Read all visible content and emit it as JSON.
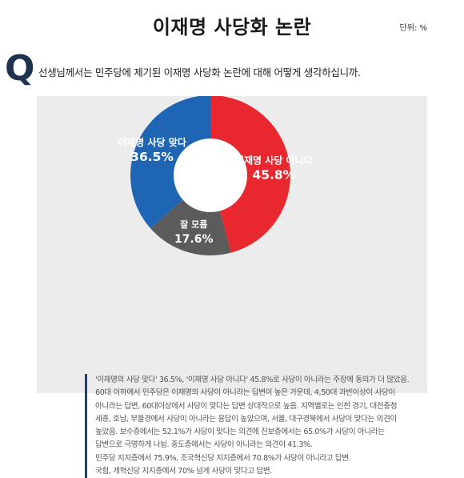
{
  "title": "이재명 사당화 논란",
  "unit": "단위: %",
  "q_mark": "Q",
  "question": "선생님께서는 민주당에 제기된 이재명 사당화 논란에 대해 어떻게 생각하십니까.",
  "chart_data": {
    "type": "pie",
    "categories": [
      "이재명 사당 아니다",
      "잘 모름",
      "이재명 사당 맞다"
    ],
    "values": [
      45.8,
      17.6,
      36.5
    ],
    "value_labels": [
      "45.8%",
      "17.6%",
      "36.5%"
    ],
    "colors": [
      "#e8272f",
      "#5b5b5b",
      "#1e66b3"
    ],
    "donut": true
  },
  "notes": [
    "'이재명의 사당 맞다' 36.5%, '이재명 사당 아니다' 45.8%로 사당이 아니라는 주장에 동의가 더 많았음.",
    "60대 이하에서 민주당은 이재명의 사당이 아니라는 답변이 높은 가운데, 4,50대 과반이상이 사당이",
    "아니라는 답변, 60대이상에서 사당이 맞다는 답변 상대적으로 높음. 지역별로는 인천 경기, 대전충청",
    "세종, 호남, 부울경에서 사당이 아니라는 응답이 높았으며, 서울, 대구경북에서 사당이 맞다는 의견이",
    "높았음. 보수층에서는 52.1%가 사당이 맞다는 의견에 진보층에서는 65.0%가 사당이 아니라는",
    "답변으로 극명하게 나뉨. 중도층에서는 사당이 아니라는 의견이 41.3%.",
    "민주당 지지층에서 75.9%, 조국혁신당 지지층에서 70.8%가 사당이 아니라고 답변.",
    "국힘, 개혁신당 지지층에서 70% 넘게 사당이 맞다고 답변."
  ]
}
